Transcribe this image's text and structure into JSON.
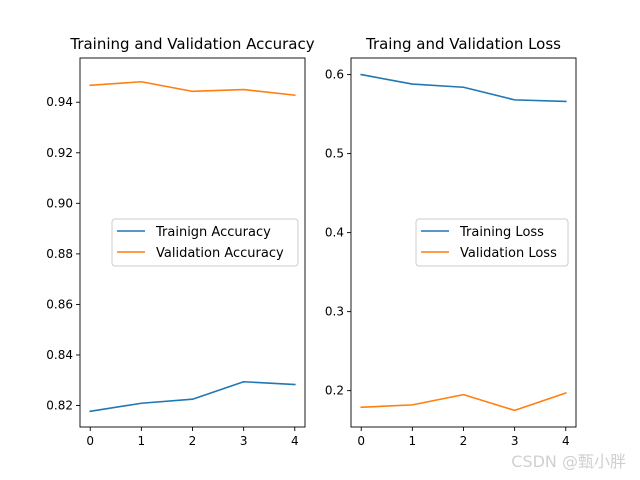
{
  "colors": {
    "series_1": "#1f77b4",
    "series_2": "#ff7f0e"
  },
  "watermark": "CSDN @甄小胖",
  "chart_data": [
    {
      "type": "line",
      "title": "Training and Validation Accuracy",
      "x": [
        0,
        1,
        2,
        3,
        4
      ],
      "xticks": [
        "0",
        "1",
        "2",
        "3",
        "4"
      ],
      "xlim": [
        -0.2,
        4.2
      ],
      "ylim": [
        0.8115,
        0.9575
      ],
      "yticks": [
        0.82,
        0.84,
        0.86,
        0.88,
        0.9,
        0.92,
        0.94
      ],
      "ytick_labels": [
        "0.82",
        "0.84",
        "0.86",
        "0.88",
        "0.90",
        "0.92",
        "0.94"
      ],
      "legend_position": "center-right",
      "grid": false,
      "series": [
        {
          "name": "Trainign Accuracy",
          "values": [
            0.8177,
            0.8209,
            0.8225,
            0.8294,
            0.8283
          ]
        },
        {
          "name": "Validation Accuracy",
          "values": [
            0.9467,
            0.9481,
            0.9443,
            0.945,
            0.9428
          ]
        }
      ]
    },
    {
      "type": "line",
      "title": "Traing and Validation Loss",
      "x": [
        0,
        1,
        2,
        3,
        4
      ],
      "xticks": [
        "0",
        "1",
        "2",
        "3",
        "4"
      ],
      "xlim": [
        -0.2,
        4.2
      ],
      "ylim": [
        0.154,
        0.621
      ],
      "yticks": [
        0.2,
        0.3,
        0.4,
        0.5,
        0.6
      ],
      "ytick_labels": [
        "0.2",
        "0.3",
        "0.4",
        "0.5",
        "0.6"
      ],
      "legend_position": "center-right",
      "grid": false,
      "series": [
        {
          "name": "Training Loss",
          "values": [
            0.6,
            0.588,
            0.584,
            0.568,
            0.566
          ]
        },
        {
          "name": "Validation Loss",
          "values": [
            0.179,
            0.182,
            0.195,
            0.175,
            0.197
          ]
        }
      ]
    }
  ]
}
